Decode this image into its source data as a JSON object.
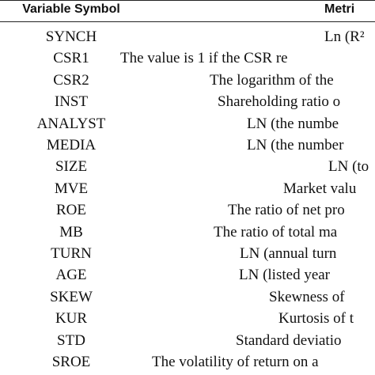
{
  "table": {
    "header": [
      "Variable Symbol",
      "Metri"
    ],
    "rows": [
      [
        "SYNCH",
        "Ln (R²"
      ],
      [
        "CSR1",
        "The value is 1 if the CSR re"
      ],
      [
        "CSR2",
        "The logarithm of the"
      ],
      [
        "INST",
        "Shareholding ratio o"
      ],
      [
        "ANALYST",
        "LN (the numbe"
      ],
      [
        "MEDIA",
        "LN (the number"
      ],
      [
        "SIZE",
        "LN (to"
      ],
      [
        "MVE",
        "Market valu"
      ],
      [
        "ROE",
        "The ratio of net pro"
      ],
      [
        "MB",
        "The ratio of total ma"
      ],
      [
        "TURN",
        "LN (annual turn"
      ],
      [
        "AGE",
        "LN (listed year"
      ],
      [
        "SKEW",
        "Skewness of"
      ],
      [
        "KUR",
        "Kurtosis of t"
      ],
      [
        "STD",
        "Standard deviatio"
      ],
      [
        "SROE",
        "The volatility of return on a"
      ]
    ]
  }
}
